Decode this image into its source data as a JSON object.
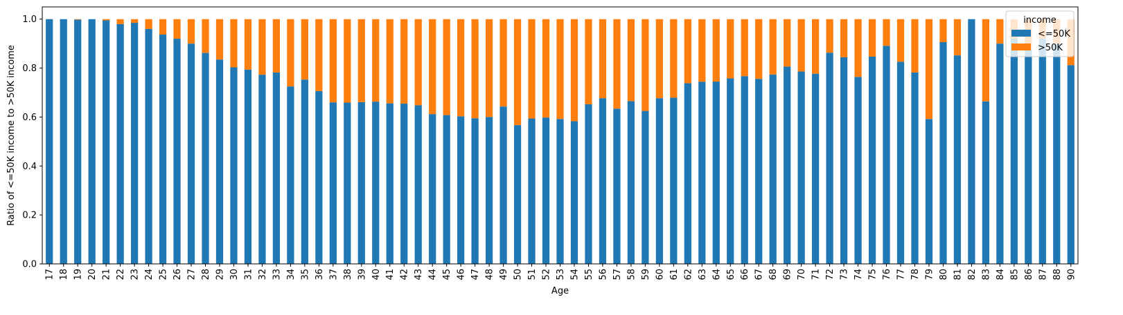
{
  "chart_data": {
    "type": "bar",
    "stacked": true,
    "xlabel": "Age",
    "ylabel": "Ratio of <=50K income to >50K income",
    "ylim": [
      0,
      1.05
    ],
    "yticks": [
      "0.0",
      "0.2",
      "0.4",
      "0.6",
      "0.8",
      "1.0"
    ],
    "legend": {
      "title": "income",
      "placement": "top-right"
    },
    "categories": [
      "17",
      "18",
      "19",
      "20",
      "21",
      "22",
      "23",
      "24",
      "25",
      "26",
      "27",
      "28",
      "29",
      "30",
      "31",
      "32",
      "33",
      "34",
      "35",
      "36",
      "37",
      "38",
      "39",
      "40",
      "41",
      "42",
      "43",
      "44",
      "45",
      "46",
      "47",
      "48",
      "49",
      "50",
      "51",
      "52",
      "53",
      "54",
      "55",
      "56",
      "57",
      "58",
      "59",
      "60",
      "61",
      "62",
      "63",
      "64",
      "65",
      "66",
      "67",
      "68",
      "69",
      "70",
      "71",
      "72",
      "73",
      "74",
      "75",
      "76",
      "77",
      "78",
      "79",
      "80",
      "81",
      "82",
      "83",
      "84",
      "85",
      "86",
      "87",
      "88",
      "90"
    ],
    "series": [
      {
        "name": "<=50K",
        "color": "#1f77b4",
        "values": [
          1.0,
          1.0,
          0.998,
          1.0,
          0.995,
          0.98,
          0.985,
          0.96,
          0.937,
          0.92,
          0.9,
          0.862,
          0.835,
          0.803,
          0.794,
          0.773,
          0.782,
          0.725,
          0.753,
          0.706,
          0.66,
          0.659,
          0.661,
          0.663,
          0.656,
          0.655,
          0.648,
          0.612,
          0.608,
          0.603,
          0.595,
          0.6,
          0.643,
          0.567,
          0.594,
          0.598,
          0.592,
          0.583,
          0.652,
          0.677,
          0.634,
          0.665,
          0.625,
          0.677,
          0.679,
          0.738,
          0.744,
          0.745,
          0.758,
          0.767,
          0.756,
          0.774,
          0.806,
          0.786,
          0.777,
          0.863,
          0.844,
          0.764,
          0.847,
          0.891,
          0.826,
          0.782,
          0.592,
          0.906,
          0.852,
          1.0,
          0.664,
          0.9,
          0.92,
          0.88,
          0.92,
          0.9,
          0.812
        ]
      },
      {
        "name": ">50K",
        "color": "#ff7f0e",
        "values": [
          0.0,
          0.0,
          0.002,
          0.0,
          0.005,
          0.02,
          0.015,
          0.04,
          0.063,
          0.08,
          0.1,
          0.138,
          0.165,
          0.197,
          0.206,
          0.227,
          0.218,
          0.275,
          0.247,
          0.294,
          0.34,
          0.341,
          0.339,
          0.337,
          0.344,
          0.345,
          0.352,
          0.388,
          0.392,
          0.397,
          0.405,
          0.4,
          0.357,
          0.433,
          0.406,
          0.402,
          0.408,
          0.417,
          0.348,
          0.323,
          0.366,
          0.335,
          0.375,
          0.323,
          0.321,
          0.262,
          0.256,
          0.255,
          0.242,
          0.233,
          0.244,
          0.226,
          0.194,
          0.214,
          0.223,
          0.137,
          0.156,
          0.236,
          0.153,
          0.109,
          0.174,
          0.218,
          0.408,
          0.094,
          0.148,
          0.0,
          0.336,
          0.1,
          0.08,
          0.12,
          0.08,
          0.1,
          0.188
        ]
      }
    ]
  }
}
